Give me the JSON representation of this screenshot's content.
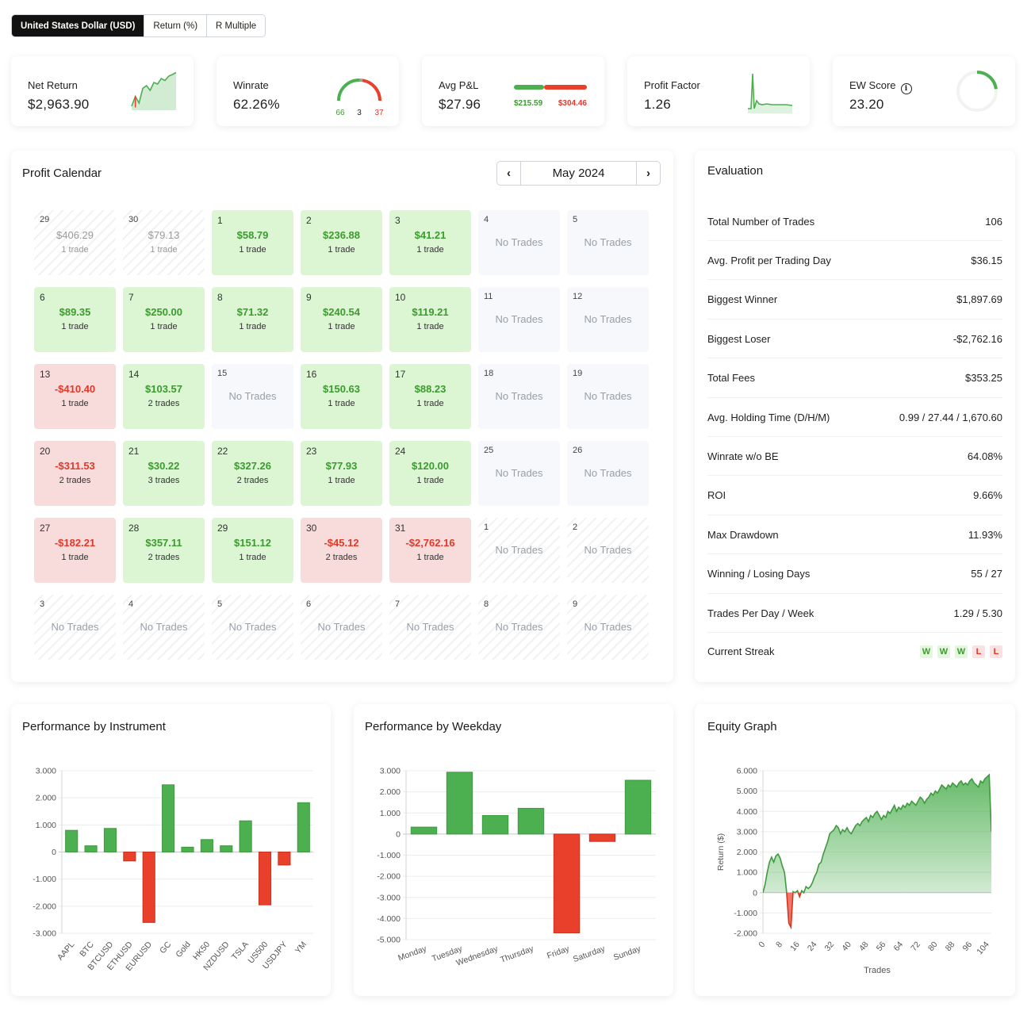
{
  "toggle": {
    "options": [
      "United States Dollar (USD)",
      "Return (%)",
      "R Multiple"
    ],
    "active_index": 0
  },
  "stats": {
    "net_return": {
      "label": "Net Return",
      "value": "$2,963.90",
      "sparkline": [
        0.1,
        0.35,
        0.18,
        0.55,
        0.62,
        0.5,
        0.7,
        0.66,
        0.8,
        0.75,
        0.86,
        0.9,
        0.95
      ]
    },
    "winrate": {
      "label": "Winrate",
      "value": "62.26%",
      "wins": "66",
      "breakeven": "3",
      "losses": "37"
    },
    "avg_pnl": {
      "label": "Avg P&L",
      "value": "$27.96",
      "avg_win": "$215.59",
      "avg_loss": "$304.46"
    },
    "profit_factor": {
      "label": "Profit Factor",
      "value": "1.26"
    },
    "ew_score": {
      "label": "EW Score",
      "value": "23.20",
      "info_icon": "info-icon",
      "score_fraction": 0.232
    }
  },
  "calendar": {
    "title": "Profit Calendar",
    "month": "May 2024",
    "prev_icon": "chevron-left-icon",
    "next_icon": "chevron-right-icon",
    "no_trades_label": "No Trades",
    "weeks": [
      [
        {
          "day": "29",
          "type": "out",
          "amount": "$406.29",
          "trades": "1 trade"
        },
        {
          "day": "30",
          "type": "out",
          "amount": "$79.13",
          "trades": "1 trade"
        },
        {
          "day": "1",
          "type": "win",
          "amount": "$58.79",
          "trades": "1 trade"
        },
        {
          "day": "2",
          "type": "win",
          "amount": "$236.88",
          "trades": "1 trade"
        },
        {
          "day": "3",
          "type": "win",
          "amount": "$41.21",
          "trades": "1 trade"
        },
        {
          "day": "4",
          "type": "none"
        },
        {
          "day": "5",
          "type": "none"
        }
      ],
      [
        {
          "day": "6",
          "type": "win",
          "amount": "$89.35",
          "trades": "1 trade"
        },
        {
          "day": "7",
          "type": "win",
          "amount": "$250.00",
          "trades": "1 trade"
        },
        {
          "day": "8",
          "type": "win",
          "amount": "$71.32",
          "trades": "1 trade"
        },
        {
          "day": "9",
          "type": "win",
          "amount": "$240.54",
          "trades": "1 trade"
        },
        {
          "day": "10",
          "type": "win",
          "amount": "$119.21",
          "trades": "1 trade"
        },
        {
          "day": "11",
          "type": "none"
        },
        {
          "day": "12",
          "type": "none"
        }
      ],
      [
        {
          "day": "13",
          "type": "loss",
          "amount": "-$410.40",
          "trades": "1 trade"
        },
        {
          "day": "14",
          "type": "win",
          "amount": "$103.57",
          "trades": "2 trades"
        },
        {
          "day": "15",
          "type": "none"
        },
        {
          "day": "16",
          "type": "win",
          "amount": "$150.63",
          "trades": "1 trade"
        },
        {
          "day": "17",
          "type": "win",
          "amount": "$88.23",
          "trades": "1 trade"
        },
        {
          "day": "18",
          "type": "none"
        },
        {
          "day": "19",
          "type": "none"
        }
      ],
      [
        {
          "day": "20",
          "type": "loss",
          "amount": "-$311.53",
          "trades": "2 trades"
        },
        {
          "day": "21",
          "type": "win",
          "amount": "$30.22",
          "trades": "3 trades"
        },
        {
          "day": "22",
          "type": "win",
          "amount": "$327.26",
          "trades": "2 trades"
        },
        {
          "day": "23",
          "type": "win",
          "amount": "$77.93",
          "trades": "1 trade"
        },
        {
          "day": "24",
          "type": "win",
          "amount": "$120.00",
          "trades": "1 trade"
        },
        {
          "day": "25",
          "type": "none"
        },
        {
          "day": "26",
          "type": "none"
        }
      ],
      [
        {
          "day": "27",
          "type": "loss",
          "amount": "-$182.21",
          "trades": "1 trade"
        },
        {
          "day": "28",
          "type": "win",
          "amount": "$357.11",
          "trades": "2 trades"
        },
        {
          "day": "29",
          "type": "win",
          "amount": "$151.12",
          "trades": "1 trade"
        },
        {
          "day": "30",
          "type": "loss",
          "amount": "-$45.12",
          "trades": "2 trades"
        },
        {
          "day": "31",
          "type": "loss",
          "amount": "-$2,762.16",
          "trades": "1 trade"
        },
        {
          "day": "1",
          "type": "out-none"
        },
        {
          "day": "2",
          "type": "out-none"
        }
      ],
      [
        {
          "day": "3",
          "type": "out-none"
        },
        {
          "day": "4",
          "type": "out-none"
        },
        {
          "day": "5",
          "type": "out-none"
        },
        {
          "day": "6",
          "type": "out-none"
        },
        {
          "day": "7",
          "type": "out-none"
        },
        {
          "day": "8",
          "type": "out-none"
        },
        {
          "day": "9",
          "type": "out-none"
        }
      ]
    ]
  },
  "evaluation": {
    "title": "Evaluation",
    "rows": [
      {
        "label": "Total Number of Trades",
        "value": "106"
      },
      {
        "label": "Avg. Profit per Trading Day",
        "value": "$36.15"
      },
      {
        "label": "Biggest Winner",
        "value": "$1,897.69"
      },
      {
        "label": "Biggest Loser",
        "value": "-$2,762.16"
      },
      {
        "label": "Total Fees",
        "value": "$353.25"
      },
      {
        "label": "Avg. Holding Time (D/H/M)",
        "value": "0.99 / 27.44 / 1,670.60"
      },
      {
        "label": "Winrate w/o BE",
        "value": "64.08%"
      },
      {
        "label": "ROI",
        "value": "9.66%"
      },
      {
        "label": "Max Drawdown",
        "value": "11.93%"
      },
      {
        "label": "Winning / Losing Days",
        "value": "55 / 27"
      },
      {
        "label": "Trades Per Day / Week",
        "value": "1.29 / 5.30"
      }
    ],
    "streak_label": "Current Streak",
    "streak": [
      "W",
      "W",
      "W",
      "L",
      "L"
    ]
  },
  "colors": {
    "positive": "#4caf50",
    "negative": "#e8402a",
    "positive_text": "#3c9a2e",
    "negative_text": "#e0392a"
  },
  "chart_data": [
    {
      "type": "bar",
      "title": "Performance by Instrument",
      "categories": [
        "AAPL",
        "BTC",
        "BTCUSD",
        "ETHUSD",
        "EURUSD",
        "GC",
        "Gold",
        "HK50",
        "NZDUSD",
        "TSLA",
        "US500",
        "USDJPY",
        "YM"
      ],
      "values": [
        800,
        230,
        870,
        -330,
        -2600,
        2480,
        180,
        460,
        230,
        1150,
        -1950,
        -480,
        1820
      ],
      "yticks": [
        3000,
        2000,
        1000,
        0,
        -1000,
        -2000,
        -3000
      ],
      "ytick_labels": [
        "3.000",
        "2.000",
        "1.000",
        "0",
        "-1.000",
        "-2.000",
        "-3.000"
      ],
      "ylim": [
        -3000,
        3000
      ],
      "grid": true
    },
    {
      "type": "bar",
      "title": "Performance by Weekday",
      "categories": [
        "Monday",
        "Tuesday",
        "Wednesday",
        "Thursday",
        "Friday",
        "Saturday",
        "Sunday"
      ],
      "values": [
        330,
        2930,
        880,
        1220,
        -4680,
        -350,
        2550
      ],
      "yticks": [
        3000,
        2000,
        1000,
        0,
        -1000,
        -2000,
        -3000,
        -4000,
        -5000
      ],
      "ytick_labels": [
        "3.000",
        "2.000",
        "1.000",
        "0",
        "-1.000",
        "-2.000",
        "-3.000",
        "-4.000",
        "-5.000"
      ],
      "ylim": [
        -5000,
        3000
      ],
      "grid": true
    },
    {
      "type": "area",
      "title": "Equity Graph",
      "xlabel": "Trades",
      "ylabel": "Return ($)",
      "xticks": [
        0,
        8,
        16,
        24,
        32,
        40,
        48,
        56,
        64,
        72,
        80,
        88,
        96,
        104
      ],
      "yticks": [
        6000,
        5000,
        4000,
        3000,
        2000,
        1000,
        0,
        -1000,
        -2000
      ],
      "ytick_labels": [
        "6.000",
        "5.000",
        "4.000",
        "3.000",
        "2.000",
        "1.000",
        "0",
        "-1.000",
        "-2.000"
      ],
      "xlim": [
        0,
        106
      ],
      "ylim": [
        -2000,
        6000
      ],
      "grid": true,
      "x": [
        0,
        1,
        2,
        3,
        4,
        5,
        6,
        7,
        8,
        9,
        10,
        11,
        12,
        13,
        14,
        15,
        16,
        17,
        18,
        19,
        20,
        21,
        22,
        23,
        24,
        25,
        26,
        27,
        28,
        29,
        30,
        31,
        32,
        33,
        34,
        35,
        36,
        37,
        38,
        39,
        40,
        41,
        42,
        43,
        44,
        45,
        46,
        47,
        48,
        49,
        50,
        51,
        52,
        53,
        54,
        55,
        56,
        57,
        58,
        59,
        60,
        61,
        62,
        63,
        64,
        65,
        66,
        67,
        68,
        69,
        70,
        71,
        72,
        73,
        74,
        75,
        76,
        77,
        78,
        79,
        80,
        81,
        82,
        83,
        84,
        85,
        86,
        87,
        88,
        89,
        90,
        91,
        92,
        93,
        94,
        95,
        96,
        97,
        98,
        99,
        100,
        101,
        102,
        103,
        104,
        105,
        106
      ],
      "y": [
        0,
        400,
        1000,
        1500,
        1750,
        1500,
        1800,
        1900,
        1700,
        1300,
        1000,
        0,
        -1500,
        -1700,
        50,
        0,
        100,
        -200,
        100,
        0,
        300,
        200,
        300,
        500,
        800,
        1000,
        1400,
        1500,
        1900,
        2200,
        2500,
        2900,
        3000,
        3100,
        3300,
        3200,
        2900,
        3100,
        3000,
        3200,
        3000,
        2900,
        3100,
        3300,
        3400,
        3300,
        3500,
        3600,
        3700,
        3500,
        3800,
        3700,
        3900,
        4000,
        3800,
        3600,
        3800,
        3700,
        4000,
        3900,
        4100,
        4300,
        4000,
        4200,
        4100,
        4300,
        4200,
        4400,
        4300,
        4500,
        4400,
        4300,
        4500,
        4700,
        4600,
        4400,
        4600,
        4700,
        4900,
        4800,
        5000,
        4900,
        5100,
        5300,
        5200,
        5100,
        5300,
        5200,
        5400,
        5300,
        5200,
        5400,
        5500,
        5300,
        5400,
        5300,
        5500,
        5600,
        5400,
        5300,
        5200,
        5500,
        5400,
        5600,
        5700,
        5800,
        3000
      ]
    }
  ]
}
